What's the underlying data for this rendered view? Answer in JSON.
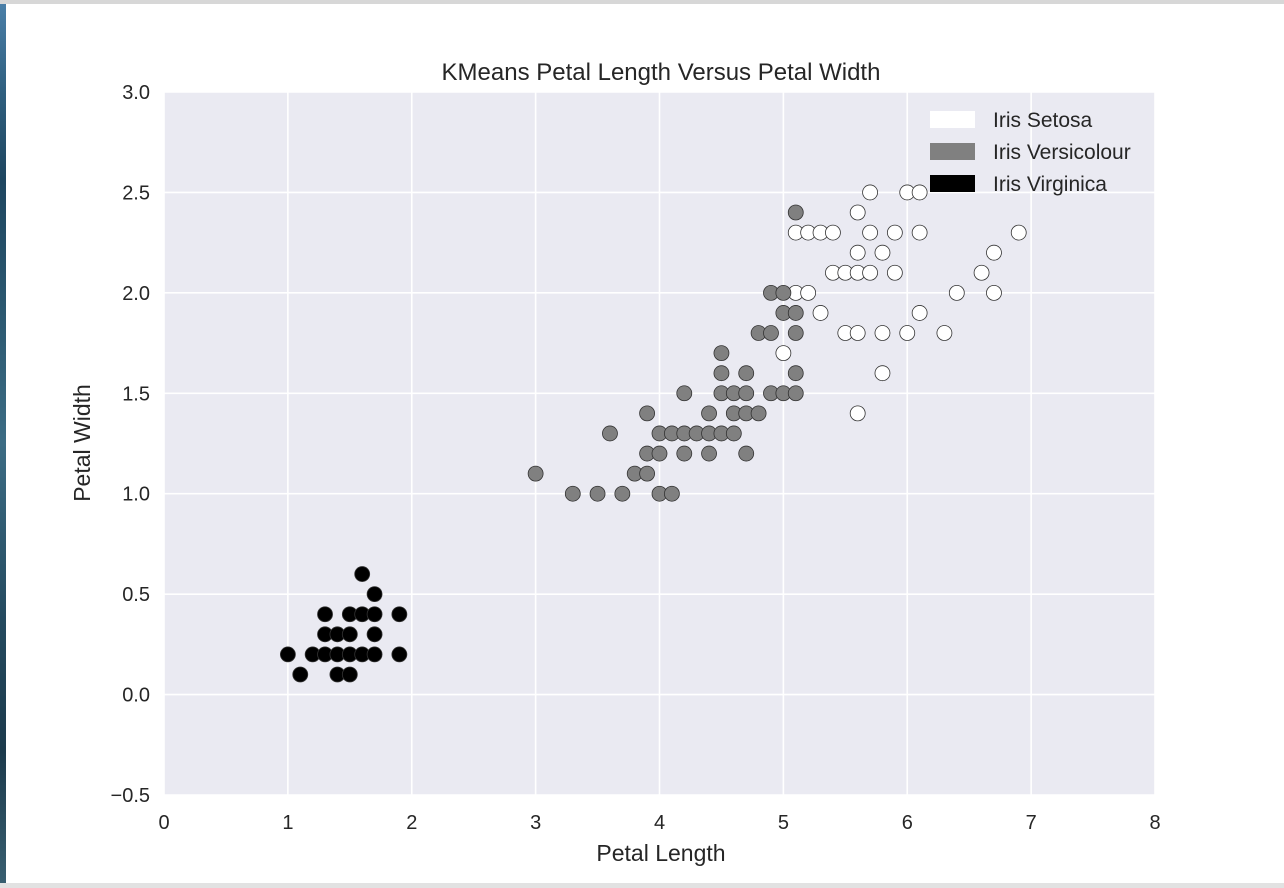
{
  "chart_data": {
    "type": "scatter",
    "title": "KMeans Petal Length Versus Petal Width",
    "xlabel": "Petal Length",
    "ylabel": "Petal Width",
    "xlim": [
      0,
      8
    ],
    "ylim": [
      -0.5,
      3.0
    ],
    "xticks": [
      0,
      1,
      2,
      3,
      4,
      5,
      6,
      7,
      8
    ],
    "xtick_labels": [
      "0",
      "1",
      "2",
      "3",
      "4",
      "5",
      "6",
      "7",
      "8"
    ],
    "yticks": [
      -0.5,
      0.0,
      0.5,
      1.0,
      1.5,
      2.0,
      2.5,
      3.0
    ],
    "ytick_labels": [
      "−0.5",
      "0.0",
      "0.5",
      "1.0",
      "1.5",
      "2.0",
      "2.5",
      "3.0"
    ],
    "grid": true,
    "legend_position": "top-right",
    "background_color": "#eaeaf2",
    "series": [
      {
        "name": "Iris Setosa",
        "color": "#ffffff",
        "points": [
          [
            5.6,
            2.4
          ],
          [
            5.7,
            2.5
          ],
          [
            6.0,
            2.5
          ],
          [
            6.1,
            2.5
          ],
          [
            5.1,
            2.3
          ],
          [
            5.2,
            2.3
          ],
          [
            5.3,
            2.3
          ],
          [
            5.4,
            2.3
          ],
          [
            5.7,
            2.3
          ],
          [
            5.9,
            2.3
          ],
          [
            6.1,
            2.3
          ],
          [
            6.9,
            2.3
          ],
          [
            5.6,
            2.2
          ],
          [
            5.8,
            2.2
          ],
          [
            6.7,
            2.2
          ],
          [
            5.4,
            2.1
          ],
          [
            5.5,
            2.1
          ],
          [
            5.6,
            2.1
          ],
          [
            5.7,
            2.1
          ],
          [
            5.9,
            2.1
          ],
          [
            6.6,
            2.1
          ],
          [
            5.1,
            2.0
          ],
          [
            5.2,
            2.0
          ],
          [
            6.4,
            2.0
          ],
          [
            6.7,
            2.0
          ],
          [
            5.3,
            1.9
          ],
          [
            6.1,
            1.9
          ],
          [
            5.5,
            1.8
          ],
          [
            5.6,
            1.8
          ],
          [
            5.8,
            1.8
          ],
          [
            6.0,
            1.8
          ],
          [
            6.3,
            1.8
          ],
          [
            5.0,
            1.7
          ],
          [
            5.8,
            1.6
          ],
          [
            5.6,
            1.4
          ]
        ]
      },
      {
        "name": "Iris Versicolour",
        "color": "#808080",
        "points": [
          [
            5.1,
            2.4
          ],
          [
            4.9,
            2.0
          ],
          [
            5.0,
            2.0
          ],
          [
            5.0,
            1.9
          ],
          [
            5.1,
            1.9
          ],
          [
            4.8,
            1.8
          ],
          [
            4.9,
            1.8
          ],
          [
            5.1,
            1.8
          ],
          [
            4.5,
            1.7
          ],
          [
            4.5,
            1.6
          ],
          [
            4.7,
            1.6
          ],
          [
            5.1,
            1.6
          ],
          [
            4.2,
            1.5
          ],
          [
            4.5,
            1.5
          ],
          [
            4.6,
            1.5
          ],
          [
            4.7,
            1.5
          ],
          [
            4.9,
            1.5
          ],
          [
            5.0,
            1.5
          ],
          [
            5.1,
            1.5
          ],
          [
            3.9,
            1.4
          ],
          [
            4.4,
            1.4
          ],
          [
            4.6,
            1.4
          ],
          [
            4.7,
            1.4
          ],
          [
            4.8,
            1.4
          ],
          [
            3.6,
            1.3
          ],
          [
            4.0,
            1.3
          ],
          [
            4.1,
            1.3
          ],
          [
            4.2,
            1.3
          ],
          [
            4.3,
            1.3
          ],
          [
            4.4,
            1.3
          ],
          [
            4.5,
            1.3
          ],
          [
            4.6,
            1.3
          ],
          [
            3.9,
            1.2
          ],
          [
            4.0,
            1.2
          ],
          [
            4.2,
            1.2
          ],
          [
            4.4,
            1.2
          ],
          [
            4.7,
            1.2
          ],
          [
            3.0,
            1.1
          ],
          [
            3.8,
            1.1
          ],
          [
            3.9,
            1.1
          ],
          [
            3.3,
            1.0
          ],
          [
            3.5,
            1.0
          ],
          [
            3.7,
            1.0
          ],
          [
            4.0,
            1.0
          ],
          [
            4.1,
            1.0
          ]
        ]
      },
      {
        "name": "Iris Virginica",
        "color": "#000000",
        "points": [
          [
            1.6,
            0.6
          ],
          [
            1.7,
            0.5
          ],
          [
            1.3,
            0.4
          ],
          [
            1.5,
            0.4
          ],
          [
            1.6,
            0.4
          ],
          [
            1.7,
            0.4
          ],
          [
            1.9,
            0.4
          ],
          [
            1.3,
            0.3
          ],
          [
            1.4,
            0.3
          ],
          [
            1.5,
            0.3
          ],
          [
            1.7,
            0.3
          ],
          [
            1.0,
            0.2
          ],
          [
            1.2,
            0.2
          ],
          [
            1.3,
            0.2
          ],
          [
            1.4,
            0.2
          ],
          [
            1.5,
            0.2
          ],
          [
            1.6,
            0.2
          ],
          [
            1.7,
            0.2
          ],
          [
            1.9,
            0.2
          ],
          [
            1.1,
            0.1
          ],
          [
            1.4,
            0.1
          ],
          [
            1.5,
            0.1
          ]
        ]
      }
    ]
  }
}
